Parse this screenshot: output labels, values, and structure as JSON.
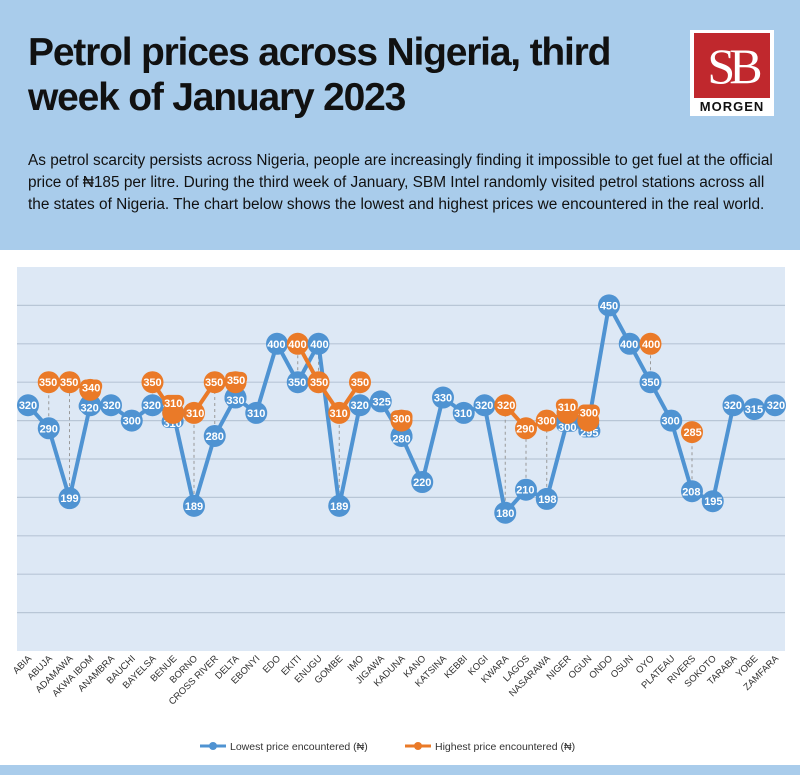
{
  "header": {
    "title": "Petrol prices across Nigeria, third week of January 2023",
    "description": "As petrol scarcity persists across Nigeria, people are increasingly finding it impossible to get fuel at the official price of ₦185 per litre. During the third week of January, SBM Intel randomly visited petrol stations across all the states of Nigeria. The chart below shows the lowest and highest prices we encountered in the real world.",
    "logo_text": "SB",
    "logo_sub": "MORGEN"
  },
  "colors": {
    "header_bg": "#a9cceb",
    "plot_bg": "#dde8f5",
    "low": "#4f93d2",
    "high": "#ea7a28",
    "logo": "#c0282d"
  },
  "chart_data": {
    "type": "line",
    "categories": [
      "ABIA",
      "ABUJA",
      "ADAMAWA",
      "AKWA IBOM",
      "ANAMBRA",
      "BAUCHI",
      "BAYELSA",
      "BENUE",
      "BORNO",
      "CROSS RIVER",
      "DELTA",
      "EBONYI",
      "EDO",
      "EKITI",
      "ENUGU",
      "GOMBE",
      "IMO",
      "JIGAWA",
      "KADUNA",
      "KANO",
      "KATSINA",
      "KEBBI",
      "KOGI",
      "KWARA",
      "LAGOS",
      "NASARAWA",
      "NIGER",
      "OGUN",
      "ONDO",
      "OSUN",
      "OYO",
      "PLATEAU",
      "RIVERS",
      "SOKOTO",
      "TARABA",
      "YOBE",
      "ZAMFARA"
    ],
    "series": [
      {
        "name": "Lowest price encountered (₦)",
        "values": [
          320,
          290,
          199,
          320,
          320,
          300,
          320,
          310,
          189,
          280,
          330,
          310,
          400,
          350,
          400,
          189,
          320,
          325,
          280,
          220,
          330,
          310,
          320,
          180,
          210,
          198,
          300,
          295,
          450,
          400,
          350,
          300,
          208,
          195,
          320,
          315,
          320
        ]
      },
      {
        "name": "Highest price encountered (₦)",
        "values": [
          null,
          350,
          350,
          340,
          null,
          null,
          350,
          310,
          310,
          350,
          350,
          null,
          null,
          400,
          350,
          310,
          350,
          null,
          300,
          null,
          null,
          null,
          null,
          320,
          290,
          300,
          310,
          300,
          null,
          null,
          400,
          null,
          285,
          null,
          null,
          null,
          null
        ]
      }
    ],
    "ylim": [
      0,
      500
    ],
    "ytick_step": 50,
    "grid": true,
    "legend": "bottom-center",
    "title": "",
    "xlabel": "",
    "ylabel": ""
  }
}
